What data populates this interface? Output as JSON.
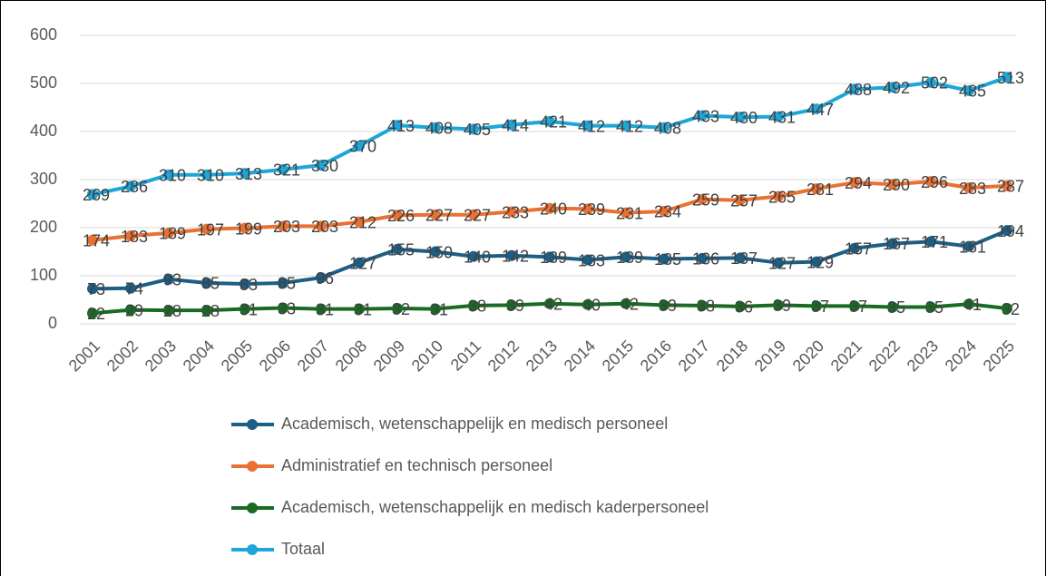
{
  "chart_data": {
    "type": "line",
    "categories": [
      "2001",
      "2002",
      "2003",
      "2004",
      "2005",
      "2006",
      "2007",
      "2008",
      "2009",
      "2010",
      "2011",
      "2012",
      "2013",
      "2014",
      "2015",
      "2016",
      "2017",
      "2018",
      "2019",
      "2020",
      "2021",
      "2022",
      "2023",
      "2024",
      "2025"
    ],
    "series": [
      {
        "name": "Academisch, wetenschappelijk en medisch personeel",
        "color": "#1d5f84",
        "values": [
          73,
          74,
          93,
          85,
          83,
          85,
          96,
          127,
          155,
          150,
          140,
          142,
          139,
          133,
          139,
          135,
          136,
          137,
          127,
          129,
          157,
          167,
          171,
          161,
          194
        ]
      },
      {
        "name": "Administratief en technisch personeel",
        "color": "#e97132",
        "values": [
          174,
          183,
          189,
          197,
          199,
          203,
          203,
          212,
          226,
          227,
          227,
          233,
          240,
          239,
          231,
          234,
          259,
          257,
          265,
          281,
          294,
          290,
          296,
          283,
          287
        ]
      },
      {
        "name": "Academisch, wetenschappelijk en medisch kaderpersoneel",
        "color": "#196b24",
        "values": [
          22,
          29,
          28,
          28,
          31,
          33,
          31,
          31,
          32,
          31,
          38,
          39,
          42,
          40,
          42,
          39,
          38,
          36,
          39,
          37,
          37,
          35,
          35,
          41,
          32
        ]
      },
      {
        "name": "Totaal",
        "color": "#1ea6d9",
        "values": [
          269,
          286,
          310,
          310,
          313,
          321,
          330,
          370,
          413,
          408,
          405,
          414,
          421,
          412,
          412,
          408,
          433,
          430,
          431,
          447,
          488,
          492,
          502,
          485,
          513
        ]
      }
    ],
    "ylim": [
      0,
      600
    ],
    "yticks": [
      0,
      100,
      200,
      300,
      400,
      500,
      600
    ],
    "grid": true,
    "legend": "bottom"
  }
}
